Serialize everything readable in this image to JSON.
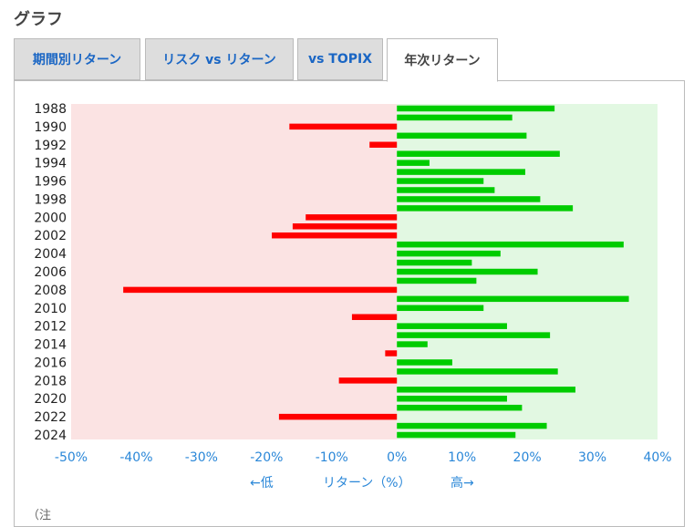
{
  "section": {
    "title": "グラフ"
  },
  "tabs": [
    {
      "label": "期間別リターン"
    },
    {
      "label": "リスク vs リターン"
    },
    {
      "label": "vs TOPIX"
    },
    {
      "label": "年次リターン"
    }
  ],
  "colors": {
    "positive": "#00cc00",
    "negative": "#ff0000",
    "positive_bg": "#e2f8e2",
    "negative_bg": "#fbe3e3",
    "tick_text": "#2a87d8"
  },
  "chart_data": {
    "type": "bar",
    "orientation": "horizontal",
    "categories": [
      "1988",
      "1989",
      "1990",
      "1991",
      "1992",
      "1993",
      "1994",
      "1995",
      "1996",
      "1997",
      "1998",
      "1999",
      "2000",
      "2001",
      "2002",
      "2003",
      "2004",
      "2005",
      "2006",
      "2007",
      "2008",
      "2009",
      "2010",
      "2011",
      "2012",
      "2013",
      "2014",
      "2015",
      "2016",
      "2017",
      "2018",
      "2019",
      "2020",
      "2021",
      "2022",
      "2023",
      "2024"
    ],
    "values": [
      24.2,
      17.7,
      -16.5,
      19.9,
      -4.2,
      25.0,
      5.0,
      19.7,
      13.3,
      15.0,
      22.0,
      27.0,
      -14.0,
      -16.0,
      -19.2,
      34.8,
      15.9,
      11.5,
      21.6,
      12.2,
      -42.0,
      35.6,
      13.3,
      -6.9,
      16.9,
      23.5,
      4.7,
      -1.8,
      8.5,
      24.7,
      -8.9,
      27.4,
      16.9,
      19.2,
      -18.1,
      23.0,
      18.2
    ],
    "year_labels": [
      "1988",
      "1990",
      "1992",
      "1994",
      "1996",
      "1998",
      "2000",
      "2002",
      "2004",
      "2006",
      "2008",
      "2010",
      "2012",
      "2014",
      "2016",
      "2018",
      "2020",
      "2022",
      "2024"
    ],
    "xticks": [
      "-50%",
      "-40%",
      "-30%",
      "-20%",
      "-10%",
      "0%",
      "10%",
      "20%",
      "30%",
      "40%"
    ],
    "xlim": [
      -50,
      40
    ],
    "xlabel": "リターン（%）",
    "low_label": "←低",
    "high_label": "高→"
  },
  "footer": {
    "partial_text": "（注"
  }
}
